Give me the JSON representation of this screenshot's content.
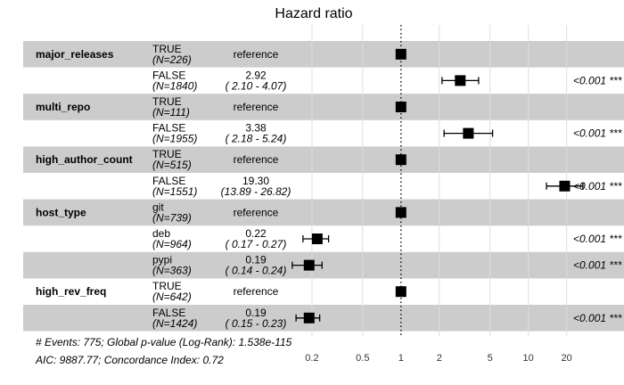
{
  "chart_data": {
    "type": "forest",
    "title": "Hazard ratio",
    "x_scale": "log",
    "xlim": [
      0.145,
      45
    ],
    "xticks": [
      0.2,
      0.5,
      1,
      2,
      5,
      10,
      20
    ],
    "xtick_labels": [
      "0.2",
      "0.5",
      "1",
      "2",
      "5",
      "10",
      "20"
    ],
    "reference_line": 1,
    "grid": true,
    "rows": [
      {
        "variable": "major_releases",
        "level": "TRUE",
        "n": "(N=226)",
        "estimate_label": "reference",
        "ci_label": "",
        "hr": 1,
        "lo": null,
        "hi": null,
        "p": "",
        "shaded": true
      },
      {
        "variable": "",
        "level": "FALSE",
        "n": "(N=1840)",
        "estimate_label": "2.92",
        "ci_label": "( 2.10 -  4.07)",
        "hr": 2.92,
        "lo": 2.1,
        "hi": 4.07,
        "p": "<0.001 ***",
        "shaded": false
      },
      {
        "variable": "multi_repo",
        "level": "TRUE",
        "n": "(N=111)",
        "estimate_label": "reference",
        "ci_label": "",
        "hr": 1,
        "lo": null,
        "hi": null,
        "p": "",
        "shaded": true
      },
      {
        "variable": "",
        "level": "FALSE",
        "n": "(N=1955)",
        "estimate_label": "3.38",
        "ci_label": "( 2.18 -  5.24)",
        "hr": 3.38,
        "lo": 2.18,
        "hi": 5.24,
        "p": "<0.001 ***",
        "shaded": false
      },
      {
        "variable": "high_author_count",
        "level": "TRUE",
        "n": "(N=515)",
        "estimate_label": "reference",
        "ci_label": "",
        "hr": 1,
        "lo": null,
        "hi": null,
        "p": "",
        "shaded": true
      },
      {
        "variable": "",
        "level": "FALSE",
        "n": "(N=1551)",
        "estimate_label": "19.30",
        "ci_label": "(13.89 - 26.82)",
        "hr": 19.3,
        "lo": 13.89,
        "hi": 26.82,
        "p": "<0.001 ***",
        "shaded": false
      },
      {
        "variable": "host_type",
        "level": "git",
        "n": "(N=739)",
        "estimate_label": "reference",
        "ci_label": "",
        "hr": 1,
        "lo": null,
        "hi": null,
        "p": "",
        "shaded": true
      },
      {
        "variable": "",
        "level": "deb",
        "n": "(N=964)",
        "estimate_label": "0.22",
        "ci_label": "( 0.17 -  0.27)",
        "hr": 0.22,
        "lo": 0.17,
        "hi": 0.27,
        "p": "<0.001 ***",
        "shaded": false
      },
      {
        "variable": "",
        "level": "pypi",
        "n": "(N=363)",
        "estimate_label": "0.19",
        "ci_label": "( 0.14 -  0.24)",
        "hr": 0.19,
        "lo": 0.14,
        "hi": 0.24,
        "p": "<0.001 ***",
        "shaded": true
      },
      {
        "variable": "high_rev_freq",
        "level": "TRUE",
        "n": "(N=642)",
        "estimate_label": "reference",
        "ci_label": "",
        "hr": 1,
        "lo": null,
        "hi": null,
        "p": "",
        "shaded": false
      },
      {
        "variable": "",
        "level": "FALSE",
        "n": "(N=1424)",
        "estimate_label": "0.19",
        "ci_label": "( 0.15 -  0.23)",
        "hr": 0.19,
        "lo": 0.15,
        "hi": 0.23,
        "p": "<0.001 ***",
        "shaded": true
      }
    ],
    "footer": [
      "# Events: 775; Global p-value (Log-Rank): 1.538e-115",
      "AIC: 9887.77; Concordance Index: 0.72"
    ],
    "colors": {
      "shade": "#cccccc",
      "grid": "#dedede",
      "marker": "#000000"
    }
  }
}
